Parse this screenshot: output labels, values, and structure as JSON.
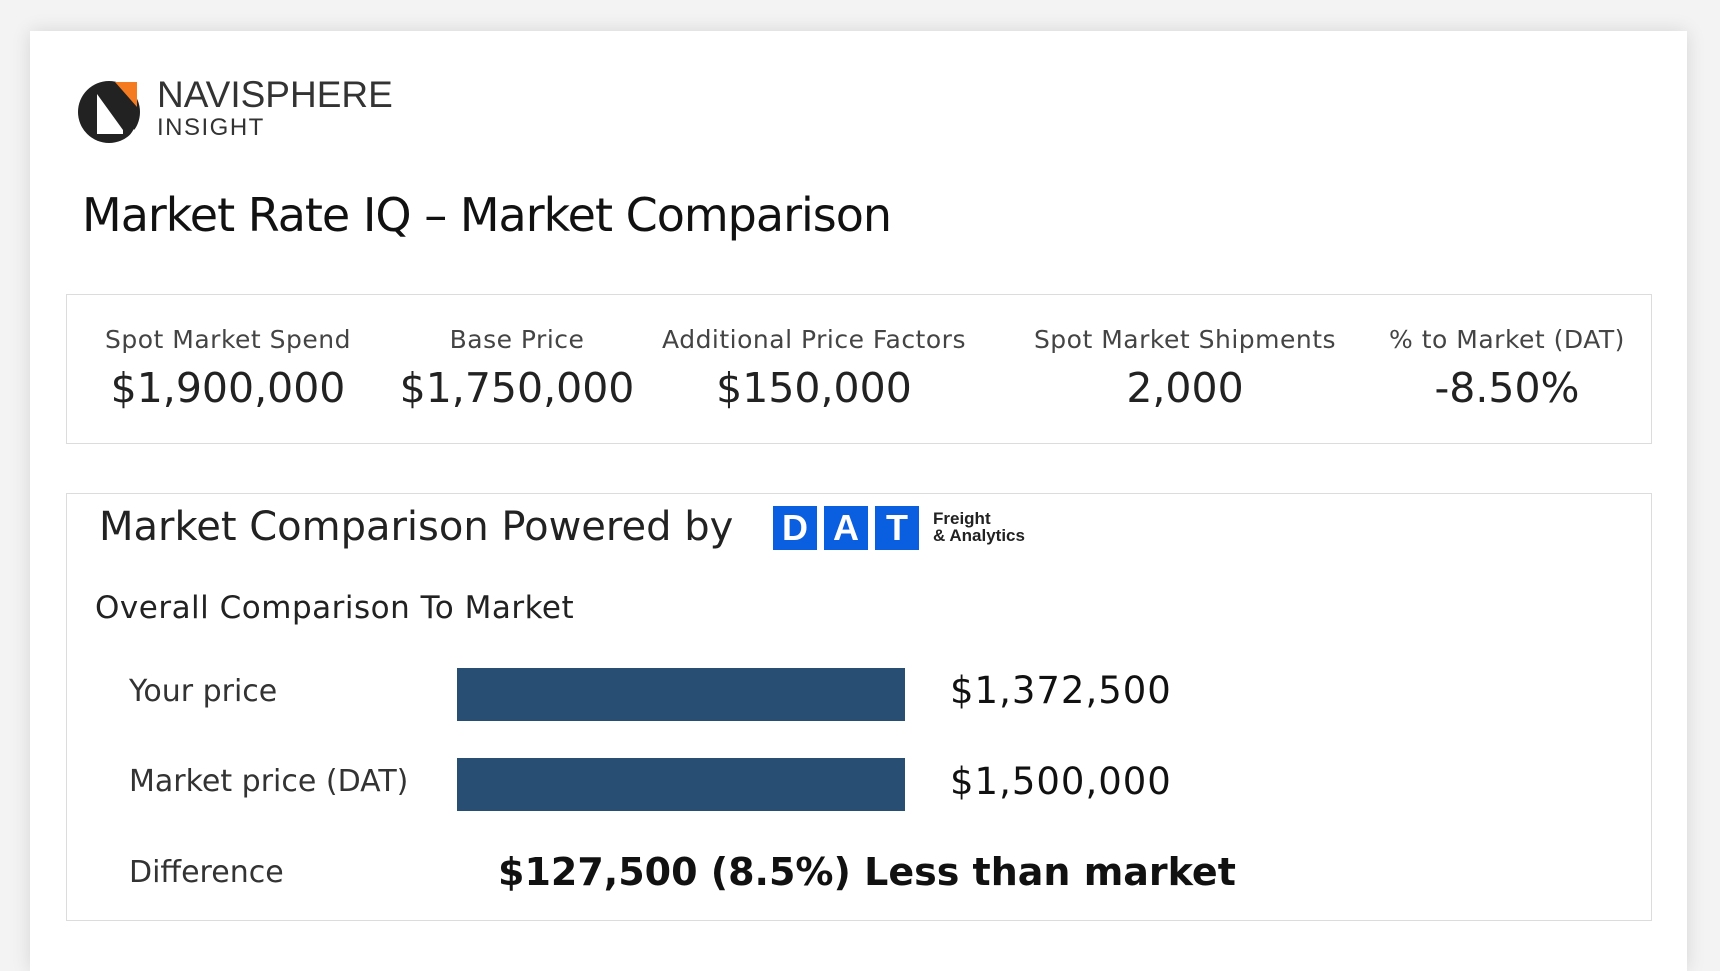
{
  "logo": {
    "name": "NAVISPHERE",
    "sub": "INSIGHT",
    "accent": "#f47b20"
  },
  "page_title": "Market Rate IQ – Market Comparison",
  "stats": [
    {
      "label": "Spot Market Spend",
      "value": "$1,900,000"
    },
    {
      "label": "Base Price",
      "value": "$1,750,000"
    },
    {
      "label": "Additional Price Factors",
      "value": "$150,000"
    },
    {
      "label": "Spot Market Shipments",
      "value": "2,000"
    },
    {
      "label": "% to Market (DAT)",
      "value": "-8.50%"
    }
  ],
  "comparison": {
    "heading": "Market Comparison Powered by",
    "dat_logo": {
      "letters": [
        "D",
        "A",
        "T"
      ],
      "line1": "Freight",
      "line2": "& Analytics",
      "color": "#0a5ee0"
    },
    "subheading": "Overall Comparison To Market",
    "rows": [
      {
        "label": "Your price",
        "value": "$1,372,500",
        "bar_fraction": 1.0
      },
      {
        "label": "Market price (DAT)",
        "value": "$1,500,000",
        "bar_fraction": 1.0
      }
    ],
    "difference_label": "Difference",
    "difference_value": "$127,500 (8.5%) Less than market",
    "bar_color": "#284f73"
  }
}
